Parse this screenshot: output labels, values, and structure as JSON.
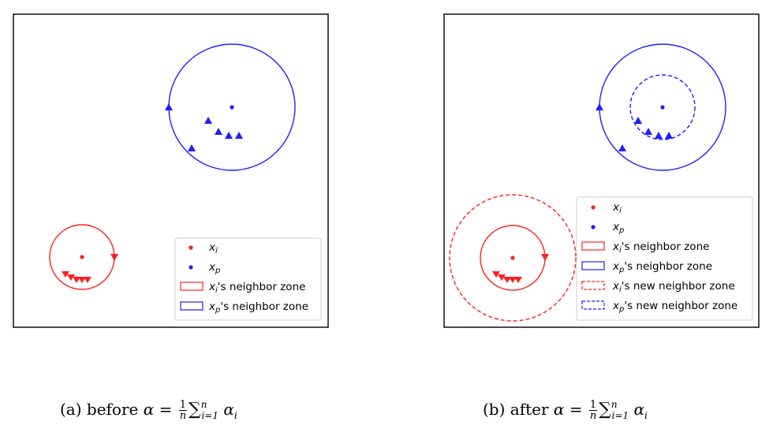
{
  "colors": {
    "red": "#ff2020",
    "blue": "#1e1eff"
  },
  "legend_labels": {
    "xi": "x_i",
    "xp": "x_p",
    "xi_zone": "x_i's neighbor zone",
    "xp_zone": "x_p's neighbor zone",
    "xi_new_zone": "x_i's new neighbor zone",
    "xp_new_zone": "x_p's new neighbor zone"
  },
  "captions": {
    "a_prefix": "(a) before",
    "b_prefix": "(b) after",
    "alpha": "α",
    "equals": "=",
    "one": "1",
    "n": "n",
    "sum": "∑",
    "sum_lower": "i=1",
    "sum_upper": "n",
    "alpha_i": "α",
    "sub_i": "i"
  }
}
